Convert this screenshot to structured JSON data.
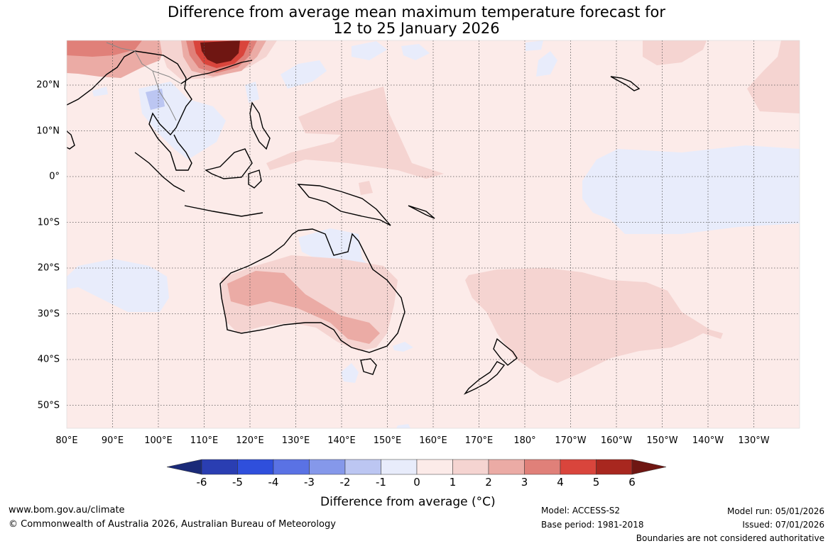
{
  "title_line1": "Difference from average mean maximum temperature forecast for",
  "title_line2": "12 to 25 January 2026",
  "map": {
    "longitude_labels": [
      "80°E",
      "90°E",
      "100°E",
      "110°E",
      "120°E",
      "130°E",
      "140°E",
      "150°E",
      "160°E",
      "170°E",
      "180°",
      "170°W",
      "160°W",
      "150°W",
      "140°W",
      "130°W"
    ],
    "latitude_labels": [
      "20°N",
      "10°N",
      "0°",
      "10°S",
      "20°S",
      "30°S",
      "40°S",
      "50°S"
    ]
  },
  "colorbar": {
    "title_prefix": "Difference from average (",
    "title_unit": "°C",
    "title_suffix": ")",
    "labels": [
      "-6",
      "-5",
      "-4",
      "-3",
      "-2",
      "-1",
      "0",
      "1",
      "2",
      "3",
      "4",
      "5",
      "6"
    ],
    "colors": [
      "#1a2a78",
      "#2a3eb2",
      "#2f4fdc",
      "#5a72e4",
      "#8598ea",
      "#bcc6f2",
      "#e8ecfb",
      "#fcebe9",
      "#f5d4d1",
      "#ebaba5",
      "#e08079",
      "#d9453c",
      "#a8271f",
      "#6f1612"
    ]
  },
  "footer": {
    "url": "www.bom.gov.au/climate",
    "copyright": "© Commonwealth of Australia 2026, Australian Bureau of Meteorology",
    "model": "Model: ACCESS-S2",
    "base_period": "Base period: 1981-2018",
    "model_run": "Model run: 05/01/2026",
    "issued": "Issued: 07/01/2026",
    "boundaries": "Boundaries are not considered authoritative"
  }
}
